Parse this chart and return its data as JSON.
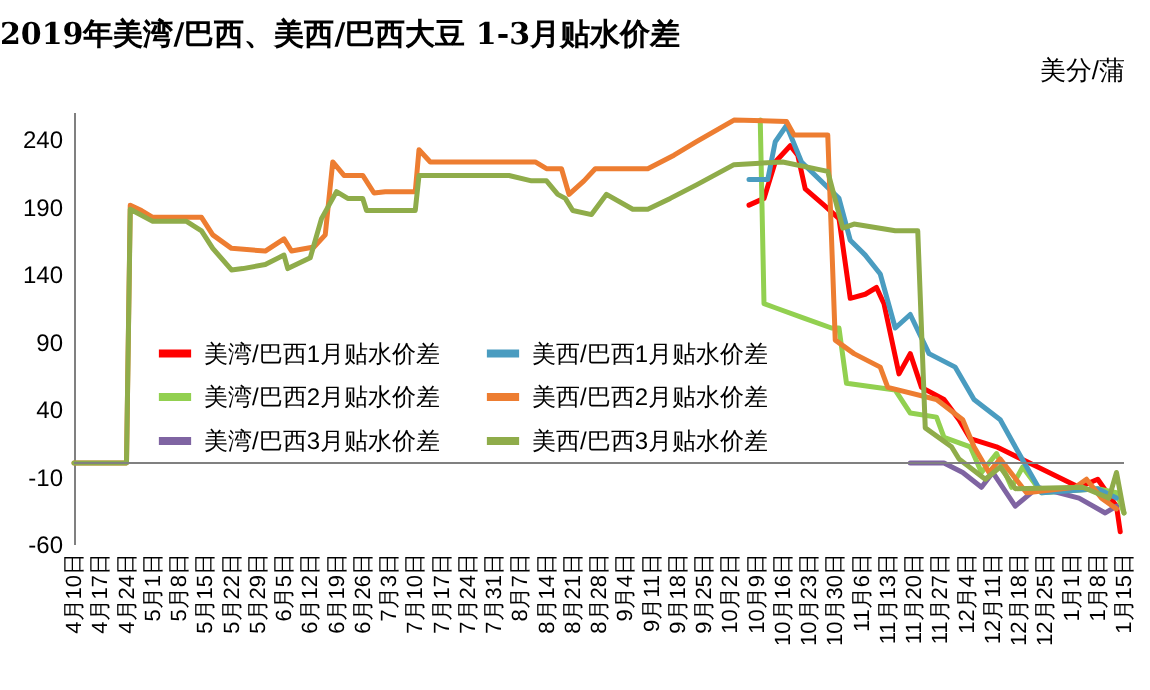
{
  "chart_data": {
    "type": "line",
    "title": "2019年美湾/巴西、美西/巴西大豆 1-3月贴水价差",
    "ylabel": "美分/蒲",
    "xlim": [
      "2019-04-10",
      "2020-01-15"
    ],
    "xticks": [
      {
        "value": "2019-04-10",
        "label": "4月10日"
      },
      {
        "value": "2019-04-17",
        "label": "4月17日"
      },
      {
        "value": "2019-04-24",
        "label": "4月24日"
      },
      {
        "value": "2019-05-01",
        "label": "5月1日"
      },
      {
        "value": "2019-05-08",
        "label": "5月8日"
      },
      {
        "value": "2019-05-15",
        "label": "5月15日"
      },
      {
        "value": "2019-05-22",
        "label": "5月22日"
      },
      {
        "value": "2019-05-29",
        "label": "5月29日"
      },
      {
        "value": "2019-06-05",
        "label": "6月5日"
      },
      {
        "value": "2019-06-12",
        "label": "6月12日"
      },
      {
        "value": "2019-06-19",
        "label": "6月19日"
      },
      {
        "value": "2019-06-26",
        "label": "6月26日"
      },
      {
        "value": "2019-07-03",
        "label": "7月3日"
      },
      {
        "value": "2019-07-10",
        "label": "7月10日"
      },
      {
        "value": "2019-07-17",
        "label": "7月17日"
      },
      {
        "value": "2019-07-24",
        "label": "7月24日"
      },
      {
        "value": "2019-07-31",
        "label": "7月31日"
      },
      {
        "value": "2019-08-07",
        "label": "8月7日"
      },
      {
        "value": "2019-08-14",
        "label": "8月14日"
      },
      {
        "value": "2019-08-21",
        "label": "8月21日"
      },
      {
        "value": "2019-08-28",
        "label": "8月28日"
      },
      {
        "value": "2019-09-04",
        "label": "9月4日"
      },
      {
        "value": "2019-09-11",
        "label": "9月11日"
      },
      {
        "value": "2019-09-18",
        "label": "9月18日"
      },
      {
        "value": "2019-09-25",
        "label": "9月25日"
      },
      {
        "value": "2019-10-02",
        "label": "10月2日"
      },
      {
        "value": "2019-10-09",
        "label": "10月9日"
      },
      {
        "value": "2019-10-16",
        "label": "10月16日"
      },
      {
        "value": "2019-10-23",
        "label": "10月23日"
      },
      {
        "value": "2019-10-30",
        "label": "10月30日"
      },
      {
        "value": "2019-11-06",
        "label": "11月6日"
      },
      {
        "value": "2019-11-13",
        "label": "11月13日"
      },
      {
        "value": "2019-11-20",
        "label": "11月20日"
      },
      {
        "value": "2019-11-27",
        "label": "11月27日"
      },
      {
        "value": "2019-12-04",
        "label": "12月4日"
      },
      {
        "value": "2019-12-11",
        "label": "12月11日"
      },
      {
        "value": "2019-12-18",
        "label": "12月18日"
      },
      {
        "value": "2019-12-25",
        "label": "12月25日"
      },
      {
        "value": "2020-01-01",
        "label": "1月1日"
      },
      {
        "value": "2020-01-08",
        "label": "1月8日"
      },
      {
        "value": "2020-01-15",
        "label": "1月15日"
      }
    ],
    "ylim": [
      -60,
      260
    ],
    "yticks": [
      -60,
      -10,
      40,
      90,
      140,
      190,
      240
    ],
    "grid": false,
    "legend": "bottom left",
    "line_style": "solid",
    "marker": "none",
    "ref_lines": [
      {
        "axis": "y",
        "value": 0,
        "color": "#808080"
      }
    ],
    "series": [
      {
        "name": "美湾/巴西1月贴水价差",
        "color": "#ff0000",
        "x": [
          "2019-10-07",
          "2019-10-11",
          "2019-10-14",
          "2019-10-18",
          "2019-10-20",
          "2019-10-22",
          "2019-10-27",
          "2019-10-31",
          "2019-11-03",
          "2019-11-07",
          "2019-11-10",
          "2019-11-12",
          "2019-11-16",
          "2019-11-19",
          "2019-11-22",
          "2019-11-28",
          "2019-12-02",
          "2019-12-05",
          "2019-12-12",
          "2019-12-23",
          "2020-01-03",
          "2020-01-08",
          "2020-01-13",
          "2020-01-14"
        ],
        "values": [
          191,
          196,
          223,
          235,
          228,
          203,
          191,
          181,
          122,
          125,
          130,
          118,
          66,
          81,
          56,
          47,
          32,
          18,
          12,
          -3,
          -18,
          -12,
          -32,
          -51
        ]
      },
      {
        "name": "美湾/巴西2月贴水价差",
        "color": "#92d050",
        "x": [
          "2019-10-10",
          "2019-10-11",
          "2019-10-14",
          "2019-10-22",
          "2019-10-29",
          "2019-10-31",
          "2019-11-02",
          "2019-11-15",
          "2019-11-19",
          "2019-11-26",
          "2019-11-28",
          "2019-12-05",
          "2019-12-08",
          "2019-12-12",
          "2019-12-16",
          "2019-12-19",
          "2019-12-24",
          "2020-01-08",
          "2020-01-13",
          "2020-01-15"
        ],
        "values": [
          254,
          118,
          115,
          107,
          100,
          100,
          59,
          54,
          37,
          34,
          19,
          12,
          -7,
          7,
          -18,
          -3,
          -22,
          -19,
          -22,
          -37
        ]
      },
      {
        "name": "美湾/巴西3月贴水价差",
        "color": "#7f64a2",
        "x": [
          "2019-11-19",
          "2019-11-28",
          "2019-12-03",
          "2019-12-08",
          "2019-12-11",
          "2019-12-17",
          "2019-12-23",
          "2020-01-03",
          "2020-01-10",
          "2020-01-13"
        ],
        "values": [
          0,
          0,
          -7,
          -18,
          -7,
          -32,
          -18,
          -26,
          -37,
          -32
        ]
      },
      {
        "name": "美西/巴西1月贴水价差",
        "color": "#4a9cc0",
        "x": [
          "2019-10-07",
          "2019-10-12",
          "2019-10-14",
          "2019-10-17",
          "2019-10-21",
          "2019-10-31",
          "2019-11-03",
          "2019-11-07",
          "2019-11-11",
          "2019-11-15",
          "2019-11-19",
          "2019-11-24",
          "2019-12-01",
          "2019-12-06",
          "2019-12-13",
          "2019-12-18",
          "2019-12-24",
          "2020-01-08",
          "2020-01-13"
        ],
        "values": [
          210,
          210,
          238,
          250,
          223,
          196,
          165,
          154,
          140,
          100,
          110,
          81,
          71,
          47,
          32,
          7,
          -22,
          -19,
          -26
        ]
      },
      {
        "name": "美西/巴西2月贴水价差",
        "color": "#ed7d31",
        "x": [
          "2019-04-10",
          "2019-04-24",
          "2019-04-25",
          "2019-04-28",
          "2019-05-01",
          "2019-05-14",
          "2019-05-17",
          "2019-05-22",
          "2019-05-31",
          "2019-06-05",
          "2019-06-07",
          "2019-06-13",
          "2019-06-16",
          "2019-06-18",
          "2019-06-21",
          "2019-06-26",
          "2019-06-29",
          "2019-07-02",
          "2019-07-10",
          "2019-07-11",
          "2019-07-14",
          "2019-08-11",
          "2019-08-14",
          "2019-08-18",
          "2019-08-20",
          "2019-08-24",
          "2019-08-27",
          "2019-09-10",
          "2019-09-17",
          "2019-09-23",
          "2019-10-03",
          "2019-10-17",
          "2019-10-19",
          "2019-10-28",
          "2019-10-30",
          "2019-11-04",
          "2019-11-11",
          "2019-11-13",
          "2019-11-26",
          "2019-12-03",
          "2019-12-06",
          "2019-12-10",
          "2019-12-13",
          "2019-12-20",
          "2020-01-02",
          "2020-01-05",
          "2020-01-09",
          "2020-01-13"
        ],
        "values": [
          0,
          0,
          191,
          187,
          182,
          182,
          169,
          159,
          157,
          166,
          157,
          160,
          169,
          223,
          213,
          213,
          200,
          201,
          201,
          232,
          223,
          223,
          218,
          218,
          199,
          209,
          218,
          218,
          228,
          238,
          254,
          253,
          243,
          243,
          91,
          81,
          71,
          56,
          47,
          32,
          12,
          -7,
          3,
          -22,
          -18,
          -12,
          -26,
          -34
        ]
      },
      {
        "name": "美西/巴西3月贴水价差",
        "color": "#8fac4a",
        "x": [
          "2019-04-10",
          "2019-04-24",
          "2019-04-25",
          "2019-05-01",
          "2019-05-10",
          "2019-05-14",
          "2019-05-17",
          "2019-05-22",
          "2019-05-25",
          "2019-05-31",
          "2019-06-05",
          "2019-06-06",
          "2019-06-12",
          "2019-06-15",
          "2019-06-19",
          "2019-06-22",
          "2019-06-26",
          "2019-06-27",
          "2019-07-10",
          "2019-07-11",
          "2019-08-04",
          "2019-08-10",
          "2019-08-14",
          "2019-08-17",
          "2019-08-19",
          "2019-08-21",
          "2019-08-26",
          "2019-08-30",
          "2019-09-06",
          "2019-09-10",
          "2019-09-16",
          "2019-09-23",
          "2019-10-03",
          "2019-10-16",
          "2019-10-28",
          "2019-11-01",
          "2019-11-04",
          "2019-11-15",
          "2019-11-21",
          "2019-11-23",
          "2019-11-30",
          "2019-12-02",
          "2019-12-09",
          "2019-12-13",
          "2019-12-17",
          "2020-01-04",
          "2020-01-11",
          "2020-01-13",
          "2020-01-15"
        ],
        "values": [
          0,
          0,
          188,
          179,
          179,
          172,
          159,
          143,
          144,
          147,
          154,
          144,
          152,
          181,
          201,
          196,
          196,
          187,
          187,
          213,
          213,
          209,
          209,
          199,
          196,
          187,
          184,
          199,
          188,
          188,
          196,
          206,
          221,
          223,
          216,
          174,
          177,
          172,
          172,
          26,
          12,
          3,
          -12,
          -3,
          -19,
          -18,
          -26,
          -7,
          -37
        ]
      }
    ]
  }
}
